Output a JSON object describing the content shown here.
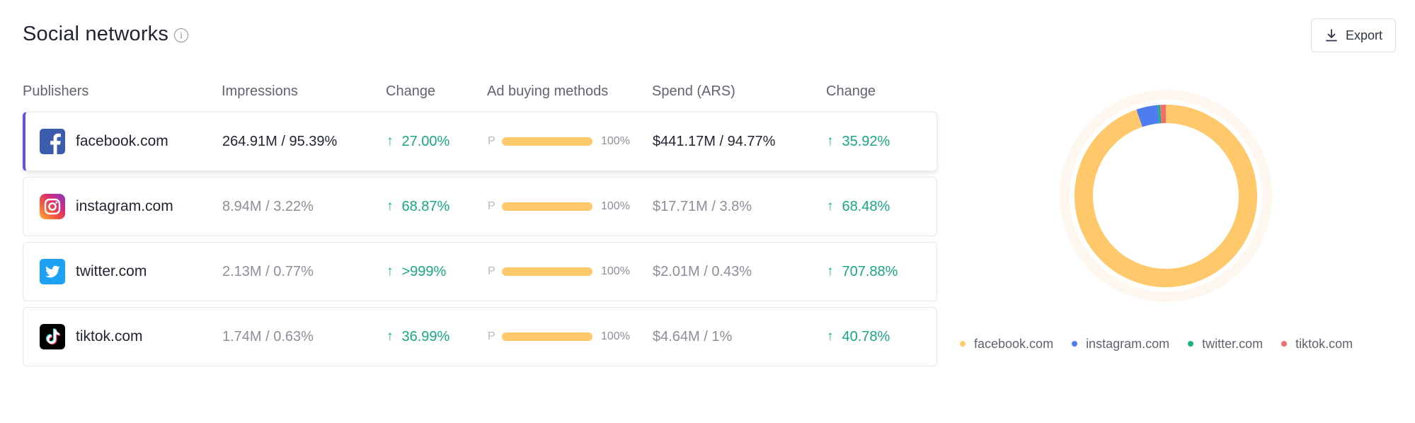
{
  "header": {
    "title": "Social networks",
    "info_icon": "info-icon",
    "export_label": "Export",
    "export_icon": "download-icon"
  },
  "columns": [
    "Publishers",
    "Impressions",
    "Change",
    "Ad buying methods",
    "Spend (ARS)",
    "Change"
  ],
  "rows": [
    {
      "publisher": "facebook.com",
      "icon": "facebook-logo-icon",
      "impressions": "264.91M / 95.39%",
      "impressions_change": "27.00%",
      "method_label": "P",
      "method_share": 1.0,
      "method_pct": "100%",
      "spend": "$441.17M / 94.77%",
      "spend_change": "35.92%",
      "selected": true
    },
    {
      "publisher": "instagram.com",
      "icon": "instagram-logo-icon",
      "impressions": "8.94M / 3.22%",
      "impressions_change": "68.87%",
      "method_label": "P",
      "method_share": 1.0,
      "method_pct": "100%",
      "spend": "$17.71M / 3.8%",
      "spend_change": "68.48%",
      "selected": false
    },
    {
      "publisher": "twitter.com",
      "icon": "twitter-logo-icon",
      "impressions": "2.13M / 0.77%",
      "impressions_change": ">999%",
      "method_label": "P",
      "method_share": 1.0,
      "method_pct": "100%",
      "spend": "$2.01M / 0.43%",
      "spend_change": "707.88%",
      "selected": false
    },
    {
      "publisher": "tiktok.com",
      "icon": "tiktok-logo-icon",
      "impressions": "1.74M / 0.63%",
      "impressions_change": "36.99%",
      "method_label": "P",
      "method_share": 1.0,
      "method_pct": "100%",
      "spend": "$4.64M / 1%",
      "spend_change": "40.78%",
      "selected": false
    }
  ],
  "colors": {
    "up_change": "#18a883",
    "selected_accent": "#6b4fd8",
    "method_bar": "#ffc86b"
  },
  "chart_data": {
    "type": "pie",
    "style": "donut",
    "categories": [
      "facebook.com",
      "instagram.com",
      "twitter.com",
      "tiktok.com"
    ],
    "values": [
      94.77,
      3.8,
      0.43,
      1.0
    ],
    "colors": [
      "#ffc86b",
      "#4f7cf0",
      "#19b37f",
      "#f26d6d"
    ],
    "legend_position": "bottom"
  }
}
